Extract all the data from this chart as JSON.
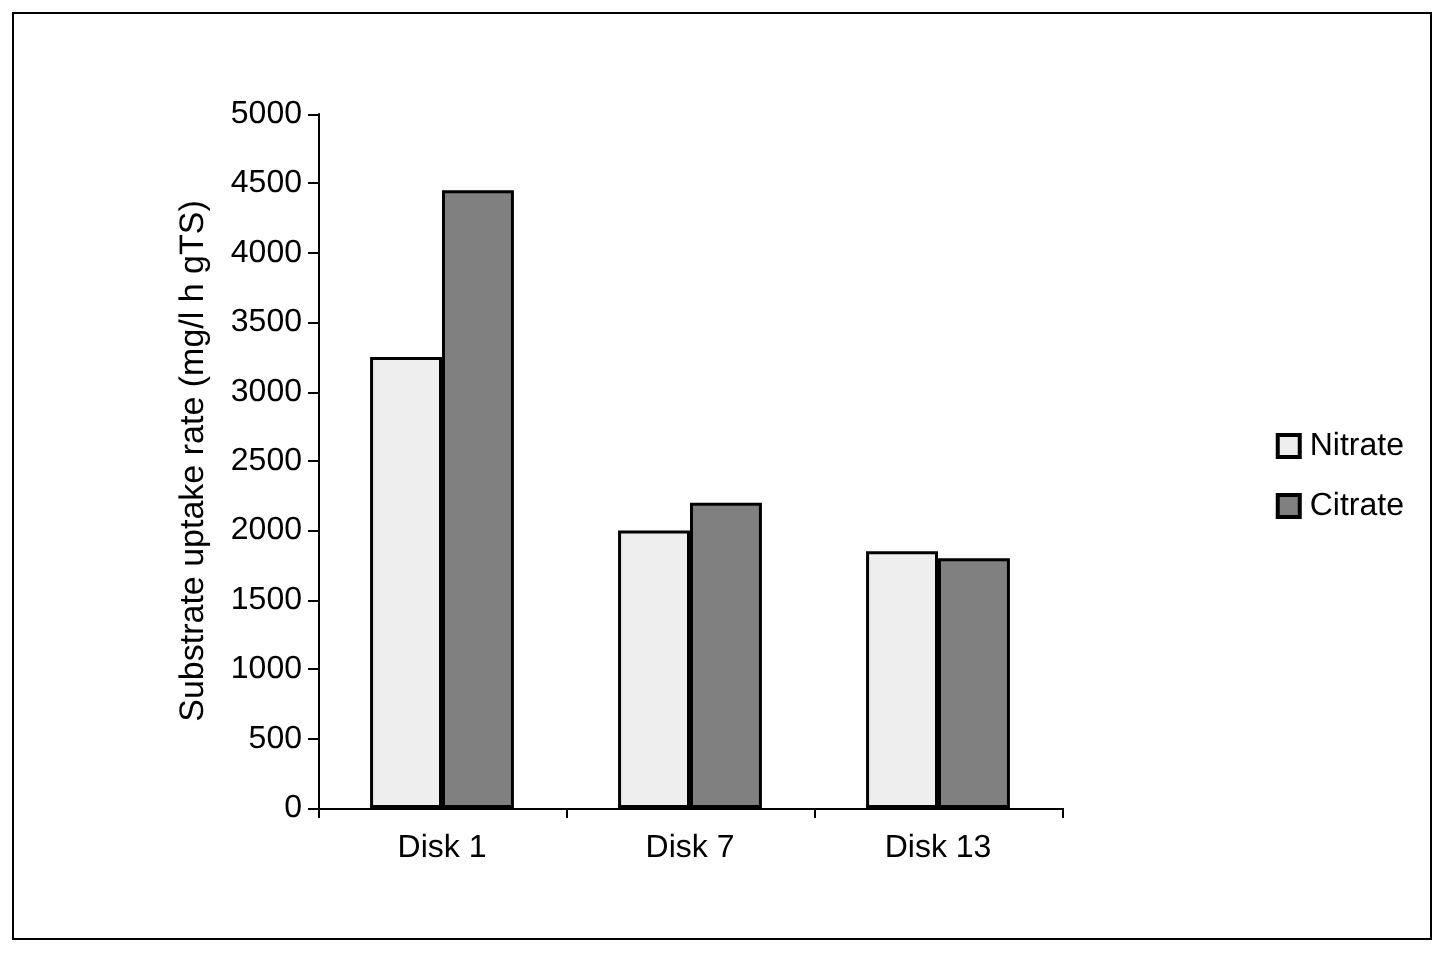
{
  "chart_data": {
    "type": "bar",
    "ylabel": "Substrate uptake rate (mg/l h gTS)",
    "categories": [
      "Disk 1",
      "Disk 7",
      "Disk 13"
    ],
    "series": [
      {
        "name": "Nitrate",
        "color": "#eeeeee",
        "values": [
          3250,
          2000,
          1850
        ]
      },
      {
        "name": "Citrate",
        "color": "#808080",
        "values": [
          4450,
          2200,
          1800
        ]
      }
    ],
    "ylim": [
      0,
      5000
    ],
    "yticks": [
      0,
      500,
      1000,
      1500,
      2000,
      2500,
      3000,
      3500,
      4000,
      4500,
      5000
    ],
    "grid": false,
    "legend": "right"
  }
}
